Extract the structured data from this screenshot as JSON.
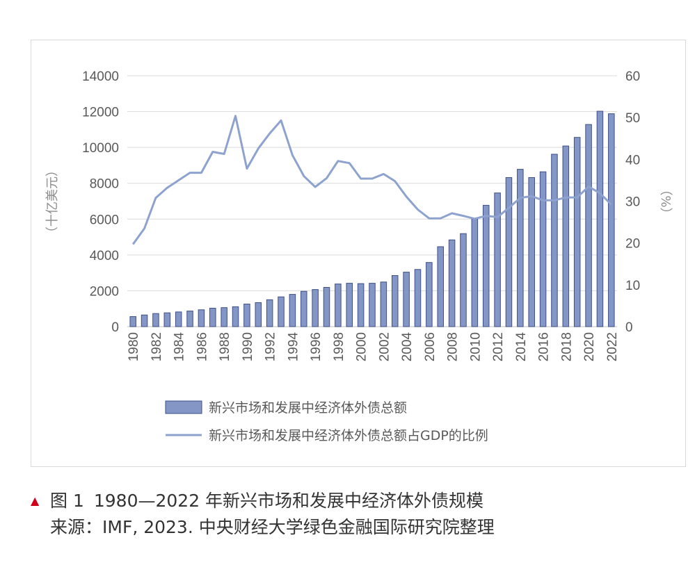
{
  "chart_data": {
    "type": "bar+line",
    "categories": [
      "1980",
      "1981",
      "1982",
      "1983",
      "1984",
      "1985",
      "1986",
      "1987",
      "1988",
      "1989",
      "1990",
      "1991",
      "1992",
      "1993",
      "1994",
      "1995",
      "1996",
      "1997",
      "1998",
      "1999",
      "2000",
      "2001",
      "2002",
      "2003",
      "2004",
      "2005",
      "2006",
      "2007",
      "2008",
      "2009",
      "2010",
      "2011",
      "2012",
      "2013",
      "2014",
      "2015",
      "2016",
      "2017",
      "2018",
      "2019",
      "2020",
      "2021",
      "2022"
    ],
    "x_tick_labels": [
      "1980",
      "1982",
      "1984",
      "1986",
      "1988",
      "1990",
      "1992",
      "1994",
      "1996",
      "1998",
      "2000",
      "2002",
      "2004",
      "2006",
      "2008",
      "2010",
      "2012",
      "2014",
      "2016",
      "2018",
      "2020",
      "2022"
    ],
    "series": [
      {
        "name": "新兴市场和发展中经济体外债总额",
        "type": "bar",
        "axis": "left",
        "values": [
          560,
          650,
          730,
          770,
          820,
          870,
          940,
          1030,
          1060,
          1110,
          1260,
          1340,
          1500,
          1660,
          1800,
          1970,
          2070,
          2190,
          2380,
          2420,
          2400,
          2420,
          2490,
          2850,
          3040,
          3190,
          3580,
          4460,
          4840,
          5190,
          6000,
          6770,
          7460,
          8320,
          8780,
          8320,
          8640,
          9620,
          10080,
          10560,
          11280,
          12020,
          11880
        ]
      },
      {
        "name": "新兴市场和发展中经济体外债总额占GDP的比例",
        "type": "line",
        "axis": "right",
        "values": [
          19.7,
          23.5,
          30.8,
          33.2,
          35.0,
          36.8,
          36.8,
          41.8,
          41.3,
          50.4,
          37.8,
          42.6,
          46.2,
          49.3,
          41.0,
          36.0,
          33.4,
          35.5,
          39.6,
          39.1,
          35.4,
          35.4,
          36.5,
          34.8,
          31.1,
          28.0,
          25.9,
          25.9,
          27.1,
          26.5,
          25.8,
          26.5,
          26.2,
          28.4,
          30.8,
          31.2,
          30.2,
          30.2,
          30.9,
          30.9,
          33.5,
          31.9,
          29.2
        ]
      }
    ],
    "y_left": {
      "label": "（十亿美元）",
      "min": 0,
      "max": 14000,
      "ticks": [
        0,
        2000,
        4000,
        6000,
        8000,
        10000,
        12000,
        14000
      ]
    },
    "y_right": {
      "label": "（%）",
      "min": 0,
      "max": 60,
      "ticks": [
        0,
        10,
        20,
        30,
        40,
        50,
        60
      ]
    },
    "grid": true,
    "legend_position": "bottom",
    "colors": {
      "bar_fill": "#8496c6",
      "bar_stroke": "#3d4f86",
      "line": "#8ea2cf",
      "grid": "#d9d9d9",
      "axis": "#bfbfbf"
    }
  },
  "caption": {
    "figure_no": "图 1",
    "title": "1980—2022 年新兴市场和发展中经济体外债规模",
    "source": "来源：IMF, 2023. 中央财经大学绿色金融国际研究院整理"
  }
}
